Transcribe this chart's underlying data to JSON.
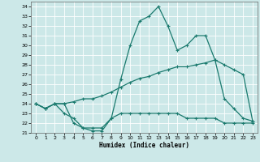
{
  "xlabel": "Humidex (Indice chaleur)",
  "bg_color": "#cce8e8",
  "grid_color": "#ffffff",
  "line_color": "#1a7a6e",
  "xlim": [
    -0.5,
    23.5
  ],
  "ylim": [
    21,
    34.5
  ],
  "xticks": [
    0,
    1,
    2,
    3,
    4,
    5,
    6,
    7,
    8,
    9,
    10,
    11,
    12,
    13,
    14,
    15,
    16,
    17,
    18,
    19,
    20,
    21,
    22,
    23
  ],
  "yticks": [
    21,
    22,
    23,
    24,
    25,
    26,
    27,
    28,
    29,
    30,
    31,
    32,
    33,
    34
  ],
  "line1_x": [
    0,
    1,
    2,
    3,
    4,
    5,
    6,
    7,
    8,
    9,
    10,
    11,
    12,
    13,
    14,
    15,
    16,
    17,
    18,
    19,
    20,
    21,
    22,
    23
  ],
  "line1_y": [
    24.0,
    23.5,
    24.0,
    24.0,
    22.0,
    21.5,
    21.2,
    21.2,
    22.5,
    26.5,
    30.0,
    32.5,
    33.0,
    34.0,
    32.0,
    29.5,
    30.0,
    31.0,
    31.0,
    28.5,
    24.5,
    23.5,
    22.5,
    22.2
  ],
  "line2_x": [
    0,
    1,
    2,
    3,
    4,
    5,
    6,
    7,
    8,
    9,
    10,
    11,
    12,
    13,
    14,
    15,
    16,
    17,
    18,
    19,
    20,
    21,
    22,
    23
  ],
  "line2_y": [
    24.0,
    23.5,
    24.0,
    23.0,
    22.5,
    21.5,
    21.5,
    21.5,
    22.5,
    23.0,
    23.0,
    23.0,
    23.0,
    23.0,
    23.0,
    23.0,
    22.5,
    22.5,
    22.5,
    22.5,
    22.0,
    22.0,
    22.0,
    22.0
  ],
  "line3_x": [
    0,
    1,
    2,
    3,
    4,
    5,
    6,
    7,
    8,
    9,
    10,
    11,
    12,
    13,
    14,
    15,
    16,
    17,
    18,
    19,
    20,
    21,
    22,
    23
  ],
  "line3_y": [
    24.0,
    23.5,
    24.0,
    24.0,
    24.2,
    24.5,
    24.5,
    24.8,
    25.2,
    25.7,
    26.2,
    26.6,
    26.8,
    27.2,
    27.5,
    27.8,
    27.8,
    28.0,
    28.2,
    28.5,
    28.0,
    27.5,
    27.0,
    22.2
  ]
}
